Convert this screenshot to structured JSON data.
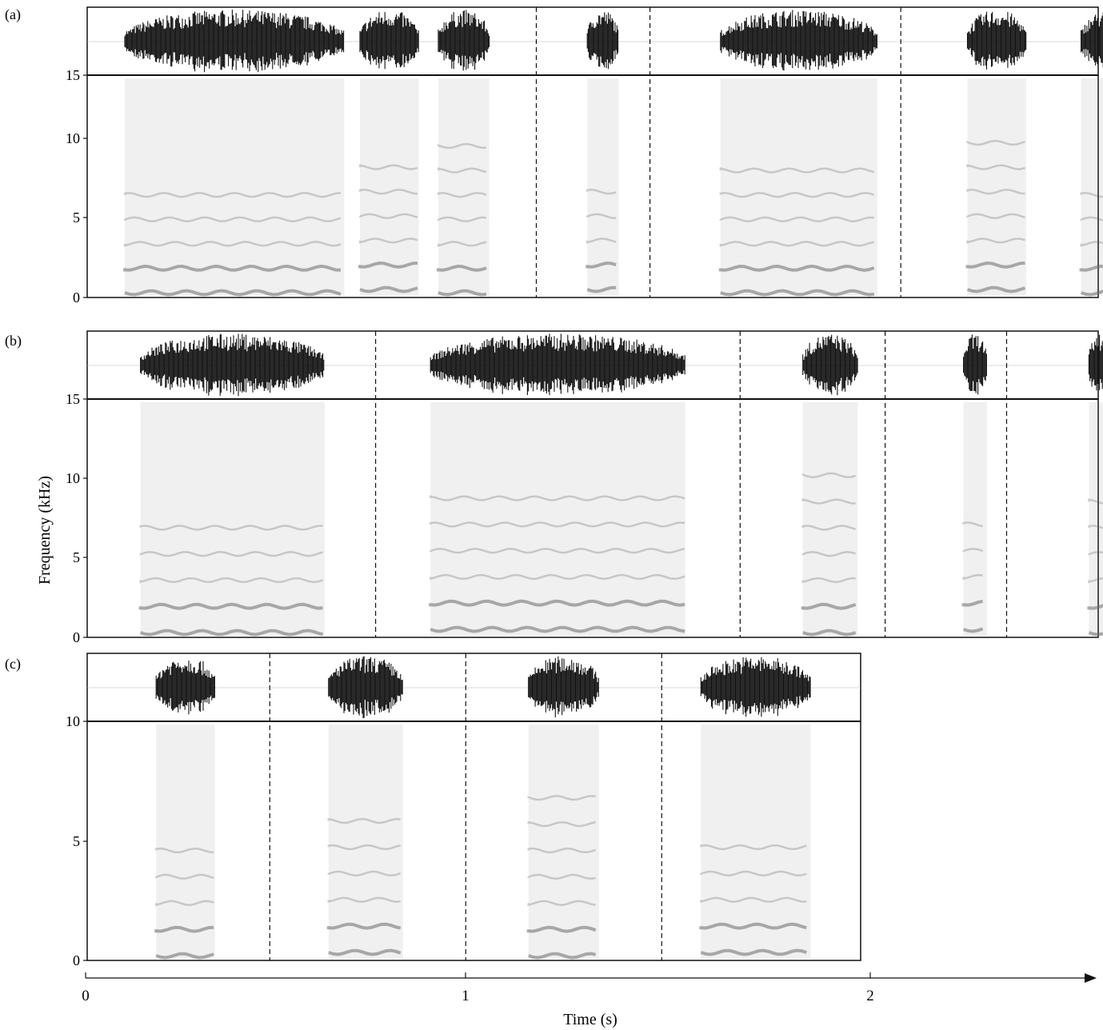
{
  "figure": {
    "y_axis_label": "Frequency (kHz)",
    "x_axis_label": "Time (s)",
    "time_ticks": [
      "0",
      "1",
      "2"
    ],
    "colors": {
      "ink": "#111111",
      "spectro": "#6b6b6b",
      "baseline": "#9a9a9a"
    }
  },
  "panels": [
    {
      "label": "(a)",
      "freq_ticks": [
        "15",
        "10",
        "5",
        "0"
      ],
      "segments": [
        {
          "t0": 0.1,
          "t1": 0.66
        },
        {
          "t0": 0.7,
          "t1": 0.85
        },
        {
          "t0": 0.9,
          "t1": 1.03
        },
        {
          "t0": 1.28,
          "t1": 1.36
        },
        {
          "t0": 1.62,
          "t1": 2.02
        },
        {
          "t0": 2.25,
          "t1": 2.4
        },
        {
          "t0": 2.54,
          "t1": 2.69
        }
      ],
      "dividers": [
        1.15,
        1.44,
        2.08
      ]
    },
    {
      "label": "(b)",
      "freq_ticks": [
        "15",
        "10",
        "5",
        "0"
      ],
      "segments": [
        {
          "t0": 0.14,
          "t1": 0.61
        },
        {
          "t0": 0.88,
          "t1": 1.53
        },
        {
          "t0": 1.83,
          "t1": 1.97
        },
        {
          "t0": 2.24,
          "t1": 2.3
        },
        {
          "t0": 2.56,
          "t1": 2.61
        }
      ],
      "dividers": [
        0.74,
        1.67,
        2.04,
        2.35
      ]
    },
    {
      "label": "(c)",
      "freq_ticks": [
        "10",
        "5",
        "0"
      ],
      "segments": [
        {
          "t0": 0.18,
          "t1": 0.33
        },
        {
          "t0": 0.62,
          "t1": 0.81
        },
        {
          "t0": 1.13,
          "t1": 1.31
        },
        {
          "t0": 1.57,
          "t1": 1.85
        }
      ],
      "dividers": [
        0.47,
        0.97,
        1.47
      ]
    }
  ]
}
